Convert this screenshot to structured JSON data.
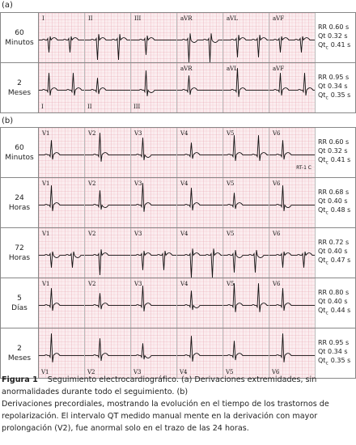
{
  "panels": [
    {
      "label": "(a)",
      "rows": [
        {
          "time": [
            "60",
            "Minutos"
          ],
          "leads": [
            "I",
            "II",
            "III",
            "aVR",
            "aVL",
            "aVF"
          ],
          "rr": "RR 0.60 s",
          "qt": "Qt 0.32 s",
          "qtc": [
            "Qt",
            "c",
            "0.41 s"
          ]
        },
        {
          "time": [
            "2",
            "Meses"
          ],
          "leads": [
            "I",
            "II",
            "III",
            "aVR",
            "aVL",
            "aVF"
          ],
          "rr": "RR 0.95 s",
          "qt": "Qt 0.34 s",
          "qtc": [
            "Qt",
            "c",
            "0.35 s"
          ]
        }
      ]
    },
    {
      "label": "(b)",
      "rows": [
        {
          "time": [
            "60",
            "Minutos"
          ],
          "leads": [
            "V1",
            "V2",
            "V3",
            "V4",
            "V5",
            "V6"
          ],
          "note": "RT-1 C",
          "rr": "RR 0.60 s",
          "qt": "Qt 0.32 s",
          "qtc": [
            "Qt",
            "c",
            "0.41 s"
          ]
        },
        {
          "time": [
            "24",
            "Horas"
          ],
          "leads": [
            "V1",
            "V2",
            "V3",
            "V4",
            "V5",
            "V6"
          ],
          "rr": "RR 0.68 s",
          "qt": "Qt 0.40 s",
          "qtc": [
            "Qt",
            "c",
            "0.48 s"
          ]
        },
        {
          "time": [
            "72",
            "Horas"
          ],
          "leads": [
            "V1",
            "V2",
            "V3",
            "V4",
            "V5",
            "V6"
          ],
          "rr": "RR 0.72 s",
          "qt": "Qt 0.40 s",
          "qtc": [
            "Qt",
            "c",
            "0.47 s"
          ]
        },
        {
          "time": [
            "5",
            "Días"
          ],
          "leads": [
            "V1",
            "V2",
            "V3",
            "V4",
            "V5",
            "V6"
          ],
          "rr": "RR 0.80 s",
          "qt": "Qt 0.40 s",
          "qtc": [
            "Qt",
            "c",
            "0.44 s"
          ]
        },
        {
          "time": [
            "2",
            "Meses"
          ],
          "leads": [
            "V1",
            "V2",
            "V3",
            "V4",
            "V5",
            "V6"
          ],
          "rr": "RR 0.95 s",
          "qt": "Qt 0.34 s",
          "qtc": [
            "Qt",
            "c",
            "0.35 s"
          ]
        }
      ]
    }
  ],
  "caption": {
    "figure": "Figura 1",
    "text": "Seguimiento electrocardiográfico. (a) Derivaciones extremidades, sin anormalidades durante todo el seguimiento. (b)",
    "text2": "Derivaciones precordiales, mostrando la evolución en el tiempo de los trastornos de repolarización. El intervalo QT medido manual mente en la derivación con mayor prolongación (V2), fue anormal solo en el trazo de las 24 horas."
  }
}
